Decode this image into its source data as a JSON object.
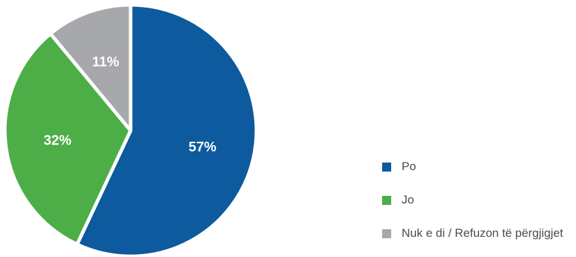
{
  "chart_data": {
    "type": "pie",
    "categories": [
      "Po",
      "Jo",
      "Nuk e di / Refuzon të përgjigjet"
    ],
    "values": [
      57,
      32,
      11
    ],
    "value_labels": [
      "57%",
      "32%",
      "11%"
    ],
    "colors": [
      "#0D5A9E",
      "#4DAE48",
      "#A7A8AB"
    ],
    "legend_position": "right"
  }
}
